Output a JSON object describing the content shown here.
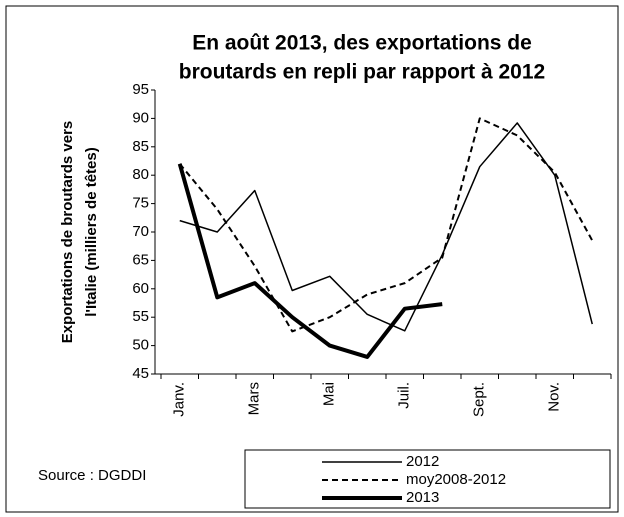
{
  "chart_data": {
    "type": "line",
    "title": [
      "En août 2013, des exportations de",
      "broutards en repli par rapport à 2012"
    ],
    "y_label": [
      "Exportations de broutards vers",
      "l'Italie (milliers de têtes)"
    ],
    "source": "Source : DGDDI",
    "categories": [
      "Janv.",
      null,
      "Mars",
      null,
      "Mai",
      null,
      "Juil.",
      null,
      "Sept.",
      null,
      "Nov.",
      null
    ],
    "series": [
      {
        "name": "2012",
        "color": "#000000",
        "width": 1.5,
        "dash": "none",
        "values": [
          72,
          70,
          77.3,
          59.7,
          62.2,
          55.5,
          52.6,
          66,
          81.5,
          89.2,
          80,
          53.8
        ]
      },
      {
        "name": "moy2008-2012",
        "color": "#000000",
        "width": 2,
        "dash": "6,4",
        "values": [
          82,
          74,
          64,
          52.5,
          55,
          59,
          61,
          65.5,
          90,
          87,
          80.5,
          68.5
        ]
      },
      {
        "name": "2013",
        "color": "#000000",
        "width": 4,
        "dash": "none",
        "values": [
          82,
          58.5,
          61,
          55,
          50,
          48,
          56.5,
          57.3,
          null,
          null,
          null,
          null
        ]
      }
    ],
    "ylim": [
      45,
      95
    ],
    "yticks": [
      45,
      50,
      55,
      60,
      65,
      70,
      75,
      80,
      85,
      90,
      95
    ],
    "grid": false,
    "legend": "bottom"
  }
}
